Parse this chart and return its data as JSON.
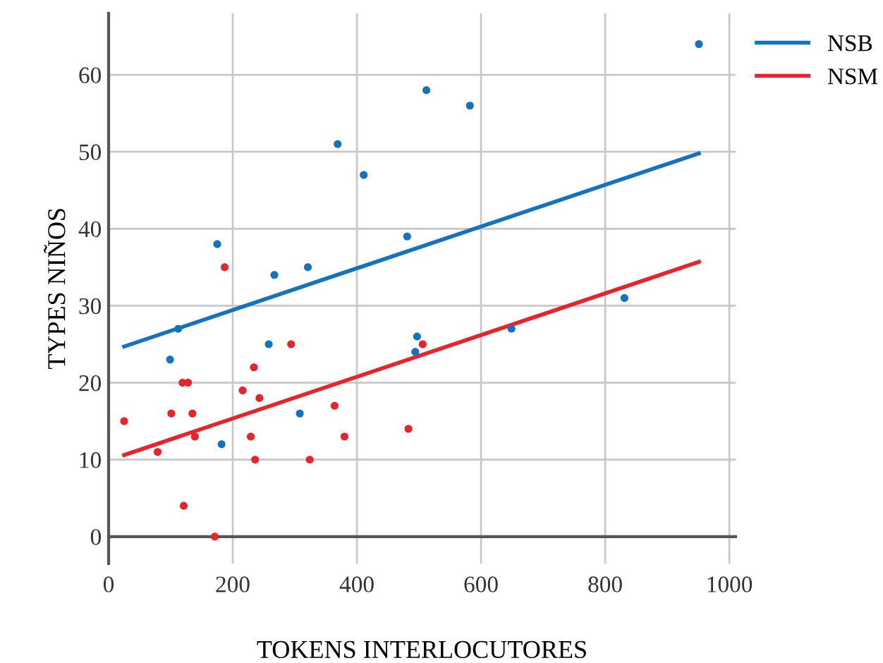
{
  "chart_data": {
    "type": "scatter",
    "xlabel": "TOKENS INTERLOCUTORES",
    "ylabel": "TYPES NIÑOS",
    "xlim": [
      0,
      1010
    ],
    "ylim": [
      -3.5,
      68
    ],
    "xticks": [
      0,
      200,
      400,
      600,
      800,
      1000
    ],
    "yticks": [
      0,
      10,
      20,
      30,
      40,
      50,
      60
    ],
    "grid": true,
    "legend": "top right",
    "marker": "circle",
    "series": [
      {
        "color": "#1473c1",
        "x": [
          99,
          112,
          175,
          182,
          258,
          267,
          321,
          308,
          369,
          411,
          481,
          494,
          497,
          512,
          582,
          649,
          831,
          951
        ],
        "values": [
          23,
          27,
          38,
          12,
          25,
          34,
          35,
          16,
          51,
          47,
          39,
          24,
          26,
          58,
          56,
          27,
          31,
          64
        ]
      },
      {
        "color": "#e8232a",
        "x": [
          25,
          79,
          101,
          119,
          128,
          135,
          139,
          121,
          171,
          187,
          216,
          229,
          234,
          243,
          236,
          294,
          364,
          380,
          324,
          483,
          506
        ],
        "values": [
          15,
          11,
          16,
          20,
          20,
          16,
          13,
          4,
          0,
          35,
          19,
          13,
          22,
          18,
          10,
          25,
          17,
          13,
          10,
          14,
          25
        ]
      },
      {
        "name": "NSB",
        "color": "#1473c1",
        "type": "line",
        "marker": "none",
        "x": [
          25,
          951
        ],
        "values": [
          24.7,
          49.8
        ]
      },
      {
        "name": "NSM",
        "color": "#e8232a",
        "type": "line",
        "marker": "none",
        "x": [
          25,
          951
        ],
        "values": [
          10.6,
          35.7
        ]
      }
    ]
  }
}
